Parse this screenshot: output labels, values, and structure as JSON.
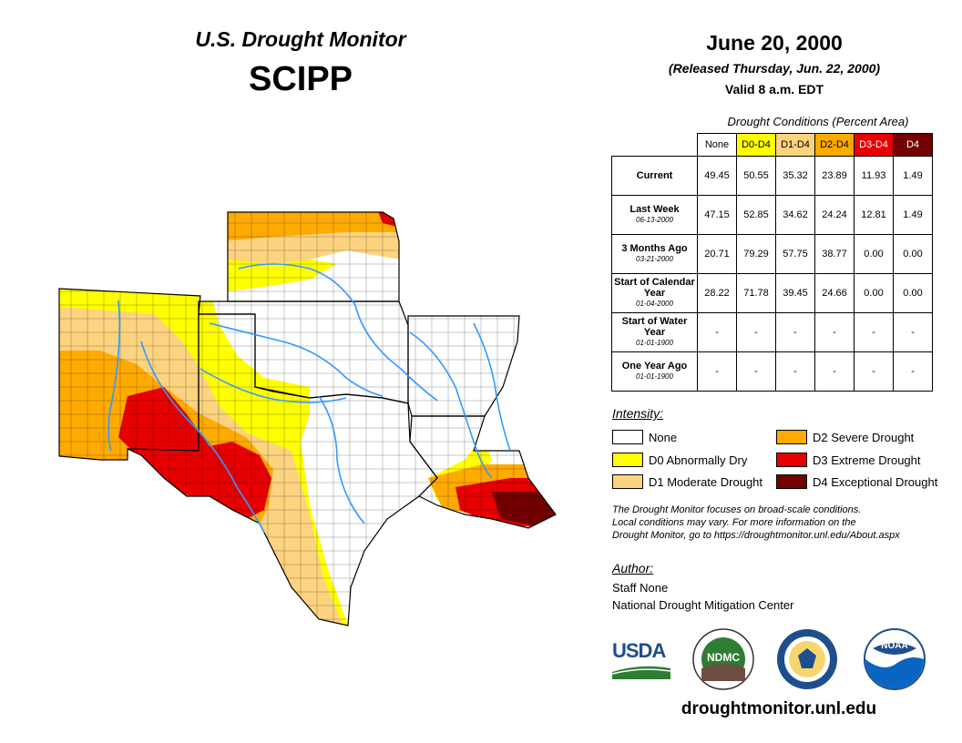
{
  "header": {
    "title": "U.S. Drought Monitor",
    "region": "SCIPP",
    "date": "June 20, 2000",
    "released": "(Released Thursday, Jun. 22, 2000)",
    "valid": "Valid 8 a.m. EDT"
  },
  "table": {
    "caption": "Drought Conditions (Percent Area)",
    "columns": [
      "None",
      "D0-D4",
      "D1-D4",
      "D2-D4",
      "D3-D4",
      "D4"
    ],
    "rows": [
      {
        "label": "Current",
        "date": "",
        "values": [
          "49.45",
          "50.55",
          "35.32",
          "23.89",
          "11.93",
          "1.49"
        ]
      },
      {
        "label": "Last Week",
        "date": "06-13-2000",
        "values": [
          "47.15",
          "52.85",
          "34.62",
          "24.24",
          "12.81",
          "1.49"
        ]
      },
      {
        "label": "3 Months Ago",
        "date": "03-21-2000",
        "values": [
          "20.71",
          "79.29",
          "57.75",
          "38.77",
          "0.00",
          "0.00"
        ]
      },
      {
        "label": "Start of Calendar Year",
        "date": "01-04-2000",
        "values": [
          "28.22",
          "71.78",
          "39.45",
          "24.66",
          "0.00",
          "0.00"
        ]
      },
      {
        "label": "Start of Water Year",
        "date": "01-01-1900",
        "values": [
          "-",
          "-",
          "-",
          "-",
          "-",
          "-"
        ]
      },
      {
        "label": "One Year Ago",
        "date": "01-01-1900",
        "values": [
          "-",
          "-",
          "-",
          "-",
          "-",
          "-"
        ]
      }
    ]
  },
  "legend": {
    "title": "Intensity:",
    "items": [
      {
        "label": "None",
        "color": "#ffffff"
      },
      {
        "label": "D0 Abnormally Dry",
        "color": "#ffff00"
      },
      {
        "label": "D1 Moderate Drought",
        "color": "#fcd37f"
      },
      {
        "label": "D2 Severe Drought",
        "color": "#ffaa00"
      },
      {
        "label": "D3 Extreme Drought",
        "color": "#e60000"
      },
      {
        "label": "D4 Exceptional Drought",
        "color": "#730000"
      }
    ]
  },
  "note": {
    "line1": "The Drought Monitor focuses on broad-scale conditions.",
    "line2": "Local conditions may vary. For more information on the",
    "line3": "Drought Monitor, go to https://droughtmonitor.unl.edu/About.aspx"
  },
  "author": {
    "title": "Author:",
    "name": "Staff None",
    "org": "National Drought Mitigation Center"
  },
  "logos": {
    "usda": "USDA",
    "ndmc": "NDMC",
    "noaa": "NOAA"
  },
  "footer": {
    "url": "droughtmonitor.unl.edu"
  }
}
